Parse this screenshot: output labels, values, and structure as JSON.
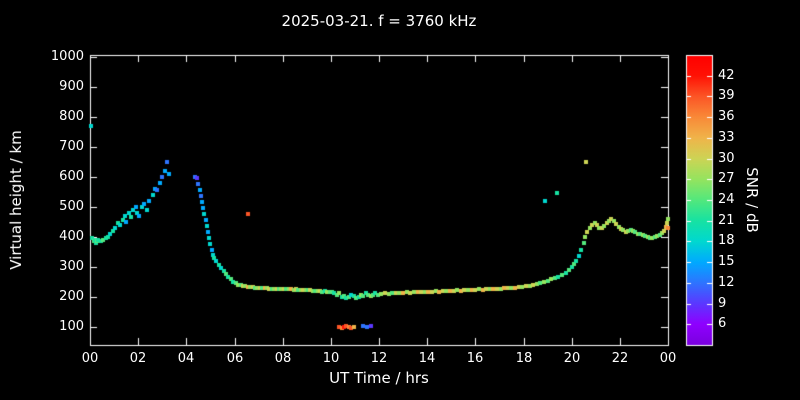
{
  "page": {
    "background": "#000000",
    "text_color": "#ffffff"
  },
  "chart_data": {
    "type": "scatter",
    "title": "2025-03-21. f = 3760 kHz",
    "xlabel": "UT Time / hrs",
    "ylabel": "Virtual height / km",
    "grid": false,
    "legend": "colorbar-right",
    "xlim": [
      0,
      24
    ],
    "ylim": [
      100,
      1000
    ],
    "x_tick_values": [
      0,
      2,
      4,
      6,
      8,
      10,
      12,
      14,
      16,
      18,
      20,
      22,
      24
    ],
    "x_tick_labels": [
      "00",
      "02",
      "04",
      "06",
      "08",
      "10",
      "12",
      "14",
      "16",
      "18",
      "20",
      "22",
      "00"
    ],
    "y_tick_values": [
      100,
      200,
      300,
      400,
      500,
      600,
      700,
      800,
      900,
      1000
    ],
    "colorbar": {
      "label": "SNR / dB",
      "min": 3,
      "max": 45,
      "tick_values": [
        6,
        9,
        12,
        15,
        18,
        21,
        24,
        27,
        30,
        33,
        36,
        39,
        42
      ],
      "stops": [
        [
          3,
          "#7a00df"
        ],
        [
          6,
          "#8f00ff"
        ],
        [
          9,
          "#5b38ff"
        ],
        [
          12,
          "#2e74ff"
        ],
        [
          15,
          "#00aaff"
        ],
        [
          18,
          "#00d8d0"
        ],
        [
          21,
          "#17e2a2"
        ],
        [
          24,
          "#53e87d"
        ],
        [
          27,
          "#95e45f"
        ],
        [
          30,
          "#cdd455"
        ],
        [
          33,
          "#f0b44a"
        ],
        [
          36,
          "#f98938"
        ],
        [
          39,
          "#fc5526"
        ],
        [
          42,
          "#ff1205"
        ],
        [
          45,
          "#ff0000"
        ]
      ]
    },
    "points": [
      [
        0.05,
        770,
        18
      ],
      [
        0.1,
        395,
        21
      ],
      [
        0.15,
        385,
        24
      ],
      [
        0.2,
        390,
        21
      ],
      [
        0.25,
        380,
        21
      ],
      [
        0.3,
        385,
        24
      ],
      [
        0.35,
        390,
        21
      ],
      [
        0.45,
        385,
        21
      ],
      [
        0.55,
        390,
        24
      ],
      [
        0.65,
        395,
        21
      ],
      [
        0.75,
        400,
        21
      ],
      [
        0.85,
        410,
        18
      ],
      [
        0.95,
        420,
        21
      ],
      [
        1.05,
        430,
        18
      ],
      [
        1.15,
        445,
        21
      ],
      [
        1.25,
        440,
        18
      ],
      [
        1.35,
        455,
        21
      ],
      [
        1.45,
        470,
        18
      ],
      [
        1.5,
        450,
        15
      ],
      [
        1.6,
        480,
        18
      ],
      [
        1.7,
        465,
        21
      ],
      [
        1.8,
        490,
        18
      ],
      [
        1.9,
        500,
        15
      ],
      [
        1.95,
        480,
        18
      ],
      [
        2.05,
        470,
        15
      ],
      [
        2.15,
        500,
        18
      ],
      [
        2.25,
        510,
        15
      ],
      [
        2.35,
        490,
        18
      ],
      [
        2.45,
        520,
        15
      ],
      [
        2.6,
        540,
        18
      ],
      [
        2.7,
        560,
        15
      ],
      [
        2.8,
        555,
        12
      ],
      [
        2.9,
        580,
        15
      ],
      [
        3.0,
        600,
        12
      ],
      [
        3.1,
        620,
        15
      ],
      [
        3.2,
        650,
        12
      ],
      [
        3.3,
        610,
        15
      ],
      [
        4.35,
        600,
        12
      ],
      [
        4.45,
        595,
        9
      ],
      [
        4.5,
        575,
        12
      ],
      [
        4.55,
        555,
        15
      ],
      [
        4.6,
        535,
        12
      ],
      [
        4.65,
        515,
        15
      ],
      [
        4.7,
        495,
        15
      ],
      [
        4.75,
        475,
        18
      ],
      [
        4.8,
        455,
        15
      ],
      [
        4.85,
        435,
        18
      ],
      [
        4.9,
        415,
        15
      ],
      [
        4.95,
        395,
        18
      ],
      [
        5.0,
        375,
        18
      ],
      [
        5.05,
        355,
        15
      ],
      [
        5.1,
        340,
        18
      ],
      [
        5.15,
        330,
        21
      ],
      [
        5.25,
        318,
        18
      ],
      [
        5.35,
        305,
        21
      ],
      [
        5.45,
        295,
        18
      ],
      [
        5.55,
        285,
        21
      ],
      [
        5.65,
        275,
        24
      ],
      [
        5.75,
        265,
        21
      ],
      [
        5.85,
        258,
        24
      ],
      [
        5.95,
        250,
        21
      ],
      [
        6.05,
        245,
        24
      ],
      [
        6.15,
        240,
        27
      ],
      [
        6.25,
        238,
        24
      ],
      [
        6.35,
        236,
        30
      ],
      [
        6.45,
        235,
        27
      ],
      [
        6.55,
        234,
        33
      ],
      [
        6.65,
        233,
        27
      ],
      [
        6.75,
        232,
        30
      ],
      [
        6.85,
        231,
        24
      ],
      [
        6.95,
        230,
        27
      ],
      [
        6.55,
        475,
        39
      ],
      [
        7.05,
        231,
        30
      ],
      [
        7.15,
        230,
        24
      ],
      [
        7.25,
        229,
        33
      ],
      [
        7.35,
        230,
        27
      ],
      [
        7.45,
        228,
        30
      ],
      [
        7.55,
        227,
        24
      ],
      [
        7.65,
        228,
        27
      ],
      [
        7.75,
        226,
        30
      ],
      [
        7.85,
        227,
        24
      ],
      [
        7.95,
        226,
        27
      ],
      [
        8.05,
        227,
        30
      ],
      [
        8.15,
        226,
        24
      ],
      [
        8.25,
        225,
        27
      ],
      [
        8.35,
        226,
        33
      ],
      [
        8.45,
        224,
        27
      ],
      [
        8.55,
        225,
        30
      ],
      [
        8.65,
        224,
        24
      ],
      [
        8.75,
        223,
        27
      ],
      [
        8.85,
        224,
        30
      ],
      [
        8.95,
        222,
        27
      ],
      [
        9.05,
        223,
        24
      ],
      [
        9.15,
        222,
        30
      ],
      [
        9.25,
        221,
        27
      ],
      [
        9.35,
        220,
        24
      ],
      [
        9.45,
        221,
        27
      ],
      [
        9.55,
        220,
        30
      ],
      [
        9.65,
        218,
        24
      ],
      [
        9.75,
        219,
        21
      ],
      [
        9.85,
        218,
        27
      ],
      [
        9.95,
        216,
        24
      ],
      [
        10.05,
        215,
        24
      ],
      [
        10.15,
        212,
        21
      ],
      [
        10.25,
        208,
        24
      ],
      [
        10.35,
        212,
        27
      ],
      [
        10.45,
        200,
        21
      ],
      [
        10.55,
        204,
        24
      ],
      [
        10.65,
        196,
        21
      ],
      [
        10.75,
        200,
        24
      ],
      [
        10.85,
        208,
        18
      ],
      [
        10.95,
        204,
        21
      ],
      [
        11.05,
        196,
        24
      ],
      [
        11.15,
        200,
        21
      ],
      [
        11.25,
        208,
        27
      ],
      [
        11.35,
        204,
        24
      ],
      [
        11.45,
        212,
        21
      ],
      [
        11.55,
        208,
        24
      ],
      [
        11.65,
        204,
        27
      ],
      [
        11.75,
        208,
        24
      ],
      [
        11.85,
        212,
        21
      ],
      [
        11.95,
        208,
        24
      ],
      [
        10.35,
        100,
        39
      ],
      [
        10.45,
        98,
        36
      ],
      [
        10.55,
        100,
        42
      ],
      [
        10.65,
        102,
        39
      ],
      [
        10.75,
        100,
        36
      ],
      [
        10.85,
        98,
        39
      ],
      [
        10.95,
        100,
        33
      ],
      [
        11.35,
        104,
        12
      ],
      [
        11.5,
        100,
        12
      ],
      [
        11.65,
        102,
        9
      ],
      [
        12.1,
        210,
        27
      ],
      [
        12.25,
        212,
        30
      ],
      [
        12.4,
        211,
        27
      ],
      [
        12.55,
        213,
        24
      ],
      [
        12.7,
        212,
        30
      ],
      [
        12.85,
        214,
        27
      ],
      [
        13.0,
        213,
        33
      ],
      [
        13.15,
        215,
        27
      ],
      [
        13.3,
        214,
        30
      ],
      [
        13.45,
        216,
        27
      ],
      [
        13.6,
        215,
        33
      ],
      [
        13.75,
        217,
        30
      ],
      [
        13.9,
        216,
        27
      ],
      [
        14.05,
        218,
        33
      ],
      [
        14.2,
        217,
        30
      ],
      [
        14.35,
        219,
        27
      ],
      [
        14.5,
        218,
        33
      ],
      [
        14.65,
        220,
        30
      ],
      [
        14.8,
        219,
        27
      ],
      [
        14.95,
        221,
        33
      ],
      [
        15.1,
        220,
        30
      ],
      [
        15.25,
        222,
        27
      ],
      [
        15.4,
        221,
        33
      ],
      [
        15.55,
        223,
        30
      ],
      [
        15.7,
        222,
        27
      ],
      [
        15.85,
        224,
        33
      ],
      [
        16.0,
        223,
        30
      ],
      [
        16.15,
        225,
        27
      ],
      [
        16.3,
        224,
        33
      ],
      [
        16.45,
        226,
        30
      ],
      [
        16.6,
        225,
        27
      ],
      [
        16.75,
        227,
        33
      ],
      [
        16.9,
        226,
        30
      ],
      [
        17.05,
        228,
        27
      ],
      [
        17.2,
        229,
        33
      ],
      [
        17.35,
        230,
        30
      ],
      [
        17.5,
        229,
        27
      ],
      [
        17.65,
        231,
        33
      ],
      [
        17.8,
        232,
        30
      ],
      [
        17.95,
        233,
        27
      ],
      [
        18.1,
        235,
        30
      ],
      [
        18.25,
        237,
        27
      ],
      [
        18.4,
        240,
        30
      ],
      [
        18.55,
        243,
        27
      ],
      [
        18.7,
        246,
        24
      ],
      [
        18.85,
        250,
        27
      ],
      [
        18.9,
        520,
        18
      ],
      [
        19.4,
        545,
        21
      ],
      [
        19.0,
        253,
        24
      ],
      [
        19.15,
        258,
        27
      ],
      [
        19.3,
        262,
        24
      ],
      [
        19.45,
        267,
        21
      ],
      [
        19.6,
        273,
        24
      ],
      [
        19.75,
        281,
        21
      ],
      [
        19.9,
        290,
        24
      ],
      [
        20.0,
        298,
        21
      ],
      [
        20.1,
        308,
        24
      ],
      [
        20.2,
        320,
        21
      ],
      [
        20.3,
        336,
        18
      ],
      [
        20.4,
        356,
        21
      ],
      [
        20.5,
        380,
        24
      ],
      [
        20.55,
        400,
        27
      ],
      [
        20.6,
        650,
        30
      ],
      [
        20.65,
        415,
        30
      ],
      [
        20.75,
        428,
        27
      ],
      [
        20.85,
        438,
        30
      ],
      [
        20.95,
        445,
        27
      ],
      [
        21.05,
        440,
        30
      ],
      [
        21.15,
        430,
        27
      ],
      [
        21.25,
        428,
        30
      ],
      [
        21.35,
        436,
        27
      ],
      [
        21.45,
        446,
        30
      ],
      [
        21.55,
        452,
        27
      ],
      [
        21.65,
        458,
        30
      ],
      [
        21.75,
        452,
        27
      ],
      [
        21.85,
        443,
        30
      ],
      [
        21.95,
        434,
        27
      ],
      [
        22.05,
        427,
        30
      ],
      [
        22.15,
        422,
        27
      ],
      [
        22.25,
        417,
        30
      ],
      [
        22.35,
        420,
        27
      ],
      [
        22.45,
        424,
        24
      ],
      [
        22.55,
        420,
        27
      ],
      [
        22.65,
        415,
        24
      ],
      [
        22.75,
        411,
        27
      ],
      [
        22.85,
        408,
        24
      ],
      [
        22.95,
        405,
        27
      ],
      [
        23.05,
        403,
        24
      ],
      [
        23.15,
        400,
        27
      ],
      [
        23.25,
        397,
        24
      ],
      [
        23.35,
        395,
        27
      ],
      [
        23.45,
        398,
        24
      ],
      [
        23.55,
        402,
        27
      ],
      [
        23.65,
        407,
        24
      ],
      [
        23.75,
        412,
        27
      ],
      [
        23.85,
        420,
        30
      ],
      [
        23.9,
        432,
        33
      ],
      [
        23.95,
        446,
        30
      ],
      [
        23.98,
        430,
        36
      ],
      [
        24.0,
        458,
        27
      ]
    ]
  }
}
